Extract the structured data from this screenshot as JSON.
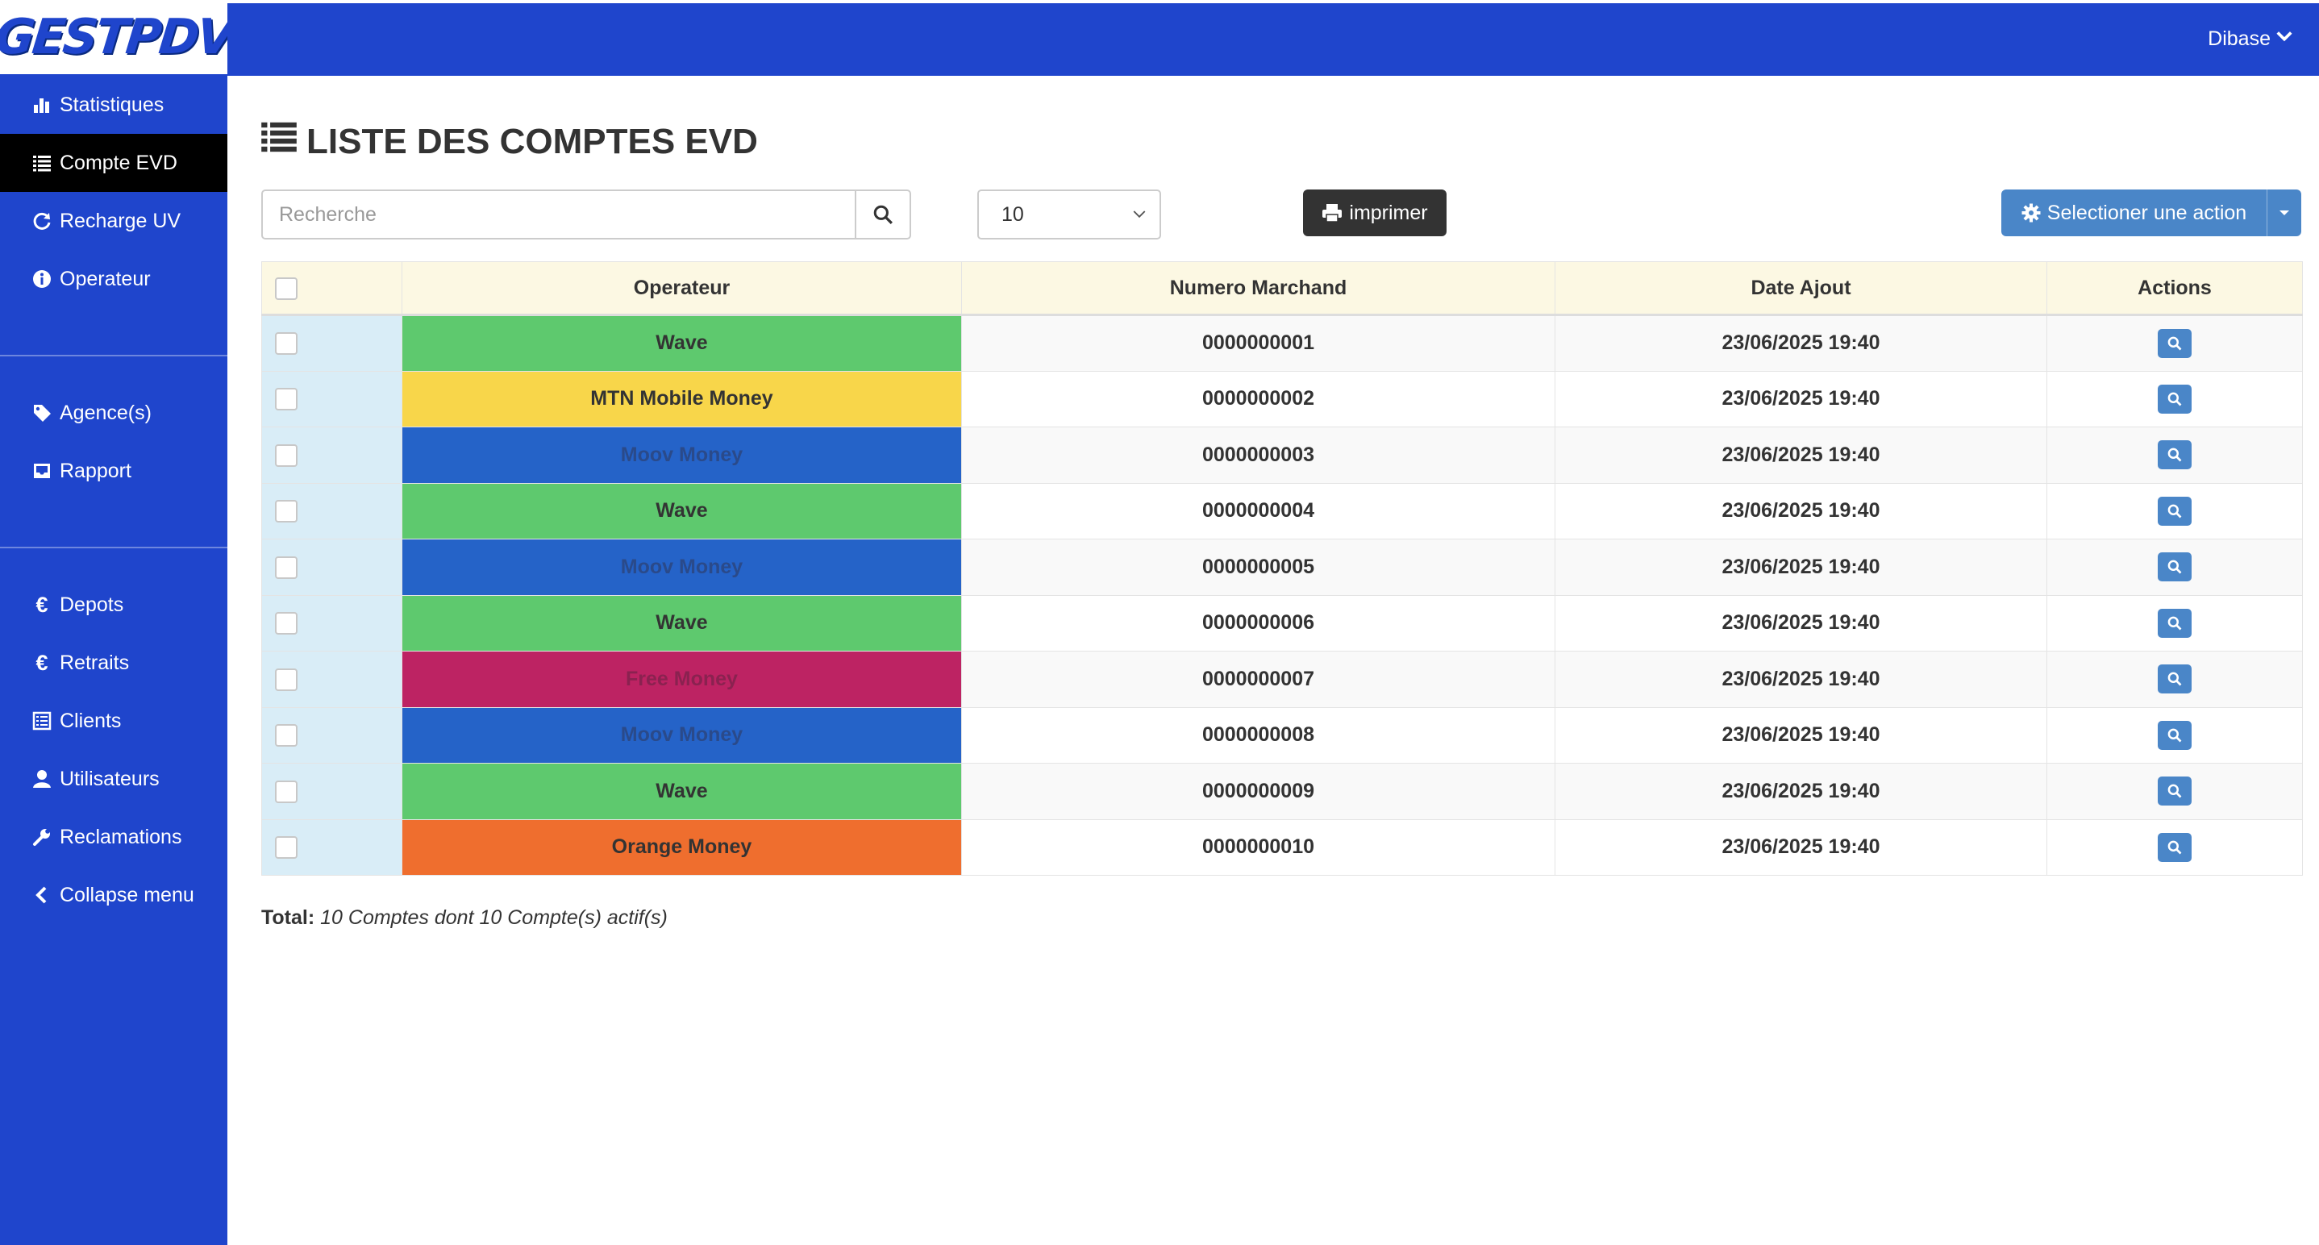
{
  "app": {
    "logo": "GESTPDV",
    "user": "Dibase"
  },
  "sidebar": {
    "group1": [
      {
        "label": "Statistiques",
        "icon": "bar-chart-icon",
        "active": false
      },
      {
        "label": "Compte EVD",
        "icon": "list-icon",
        "active": true
      },
      {
        "label": "Recharge UV",
        "icon": "refresh-icon",
        "active": false
      },
      {
        "label": "Operateur",
        "icon": "info-icon",
        "active": false
      }
    ],
    "group2": [
      {
        "label": "Agence(s)",
        "icon": "tag-icon"
      },
      {
        "label": "Rapport",
        "icon": "inbox-icon"
      }
    ],
    "group3": [
      {
        "label": "Depots",
        "icon": "euro-icon"
      },
      {
        "label": "Retraits",
        "icon": "euro-icon"
      },
      {
        "label": "Clients",
        "icon": "list-alt-icon"
      },
      {
        "label": "Utilisateurs",
        "icon": "user-icon"
      },
      {
        "label": "Reclamations",
        "icon": "wrench-icon"
      },
      {
        "label": "Collapse menu",
        "icon": "chevron-left-icon"
      }
    ]
  },
  "page": {
    "title": "LISTE DES COMPTES EVD",
    "search_placeholder": "Recherche",
    "page_size": "10",
    "print_label": "imprimer",
    "action_label": "Selectioner une action"
  },
  "table": {
    "headers": {
      "operateur": "Operateur",
      "numero": "Numero Marchand",
      "date": "Date Ajout",
      "actions": "Actions"
    },
    "rows": [
      {
        "operateur": "Wave",
        "color": "#5ec96e",
        "numero": "0000000001",
        "date": "23/06/2025 19:40"
      },
      {
        "operateur": "MTN Mobile Money",
        "color": "#f8d64a",
        "numero": "0000000002",
        "date": "23/06/2025 19:40"
      },
      {
        "operateur": "Moov Money",
        "color": "#2563c8",
        "numero": "0000000003",
        "date": "23/06/2025 19:40"
      },
      {
        "operateur": "Wave",
        "color": "#5ec96e",
        "numero": "0000000004",
        "date": "23/06/2025 19:40"
      },
      {
        "operateur": "Moov Money",
        "color": "#2563c8",
        "numero": "0000000005",
        "date": "23/06/2025 19:40"
      },
      {
        "operateur": "Wave",
        "color": "#5ec96e",
        "numero": "0000000006",
        "date": "23/06/2025 19:40"
      },
      {
        "operateur": "Free Money",
        "color": "#bd2363",
        "numero": "0000000007",
        "date": "23/06/2025 19:40"
      },
      {
        "operateur": "Moov Money",
        "color": "#2563c8",
        "numero": "0000000008",
        "date": "23/06/2025 19:40"
      },
      {
        "operateur": "Wave",
        "color": "#5ec96e",
        "numero": "0000000009",
        "date": "23/06/2025 19:40"
      },
      {
        "operateur": "Orange Money",
        "color": "#ef6e2e",
        "numero": "0000000010",
        "date": "23/06/2025 19:40"
      }
    ]
  },
  "footer": {
    "total_label": "Total:",
    "total_text": "10 Comptes dont 10 Compte(s) actif(s)"
  },
  "colors": {
    "brand": "#1f45cc",
    "active_nav": "#000000",
    "action_button": "#4a86c8",
    "print_button": "#333333",
    "header_row": "#fcf8e3",
    "check_column": "#d9edf7"
  }
}
